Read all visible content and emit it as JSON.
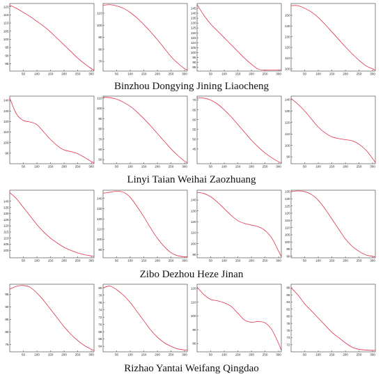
{
  "captions": [
    "Binzhou Dongying Jining Liaocheng",
    "Linyi Taian Weihai Zaozhuang",
    "Zibo Dezhou Heze Jinan",
    "Rizhao Yantai Weifang Qingdao"
  ],
  "line_color": "#e0304a",
  "chart_data": [
    {
      "type": "line",
      "name": "Binzhou",
      "x": [
        0,
        25,
        50,
        75,
        100,
        125,
        150,
        175,
        200,
        225,
        250,
        275,
        300,
        310
      ],
      "y": [
        121,
        119,
        116.5,
        114,
        111,
        108,
        104.5,
        100.5,
        96.5,
        92.5,
        88.5,
        85,
        82,
        81
      ],
      "xticks": [
        50,
        100,
        150,
        200,
        250,
        300
      ],
      "yticks": [
        85,
        90,
        95,
        100,
        105,
        110,
        115,
        120
      ],
      "xlim": [
        0,
        310
      ],
      "ylim": [
        80.5,
        122
      ]
    },
    {
      "type": "line",
      "name": "Dongying",
      "x": [
        0,
        25,
        50,
        75,
        100,
        125,
        150,
        175,
        200,
        225,
        250,
        275,
        300,
        310
      ],
      "y": [
        116.5,
        117,
        116,
        114,
        110.5,
        106,
        100.5,
        94.5,
        88,
        81,
        74,
        68.5,
        64,
        63
      ],
      "xticks": [
        50,
        100,
        150,
        200,
        250,
        300
      ],
      "yticks": [
        70,
        80,
        90,
        100,
        110
      ],
      "xlim": [
        0,
        310
      ],
      "ylim": [
        62,
        118
      ]
    },
    {
      "type": "line",
      "name": "Jining",
      "x": [
        0,
        25,
        50,
        75,
        100,
        125,
        150,
        175,
        200,
        225,
        250,
        275,
        300,
        310
      ],
      "y": [
        149,
        138,
        129,
        122,
        115,
        108,
        101,
        94,
        88,
        83,
        82,
        82,
        82,
        82
      ],
      "xticks": [
        50,
        100,
        150,
        200,
        250,
        300
      ],
      "yticks": [
        85,
        90,
        95,
        100,
        105,
        110,
        115,
        120,
        125,
        130,
        135,
        140,
        145
      ],
      "xlim": [
        0,
        310
      ],
      "ylim": [
        81,
        150
      ]
    },
    {
      "type": "line",
      "name": "Liaocheng",
      "x": [
        0,
        25,
        50,
        75,
        100,
        125,
        150,
        175,
        200,
        225,
        250,
        275,
        300,
        310
      ],
      "y": [
        159,
        159,
        156.5,
        153,
        148,
        141.5,
        134.5,
        127.5,
        120.5,
        114,
        108,
        103,
        100,
        99
      ],
      "xticks": [
        50,
        100,
        150,
        200,
        250,
        300
      ],
      "yticks": [
        100,
        110,
        120,
        130,
        140,
        150
      ],
      "xlim": [
        0,
        310
      ],
      "ylim": [
        98,
        161
      ]
    },
    {
      "type": "line",
      "name": "Linyi",
      "x": [
        0,
        25,
        50,
        75,
        100,
        125,
        150,
        175,
        200,
        225,
        250,
        275,
        300,
        310
      ],
      "y": [
        142,
        127,
        121,
        119.5,
        117,
        110,
        103,
        97,
        93,
        91.5,
        89.5,
        86,
        82,
        81
      ],
      "xticks": [
        50,
        100,
        150,
        200,
        250,
        300
      ],
      "yticks": [
        90,
        100,
        110,
        120,
        130,
        140
      ],
      "xlim": [
        0,
        310
      ],
      "ylim": [
        80,
        144
      ]
    },
    {
      "type": "line",
      "name": "Taian",
      "x": [
        0,
        25,
        50,
        75,
        100,
        125,
        150,
        175,
        200,
        225,
        250,
        275,
        300,
        310
      ],
      "y": [
        111,
        110.5,
        109,
        106,
        102,
        96.5,
        90,
        83,
        75.5,
        68,
        60.5,
        54,
        48.5,
        47
      ],
      "xticks": [
        50,
        100,
        150,
        200,
        250,
        300
      ],
      "yticks": [
        50,
        60,
        70,
        80,
        90,
        100,
        110
      ],
      "xlim": [
        0,
        310
      ],
      "ylim": [
        46,
        112
      ]
    },
    {
      "type": "line",
      "name": "Weihai",
      "x": [
        0,
        25,
        50,
        75,
        100,
        125,
        150,
        175,
        200,
        225,
        250,
        275,
        300,
        310
      ],
      "y": [
        71,
        71,
        70,
        68,
        65,
        61.5,
        57.5,
        53.5,
        49.5,
        46,
        43,
        40.5,
        38.5,
        38
      ],
      "xticks": [
        50,
        100,
        150,
        200,
        250,
        300
      ],
      "yticks": [
        45,
        50,
        55,
        60,
        65,
        70
      ],
      "xlim": [
        0,
        310
      ],
      "ylim": [
        37.5,
        72
      ]
    },
    {
      "type": "line",
      "name": "Zaozhuang",
      "x": [
        0,
        25,
        50,
        75,
        100,
        125,
        150,
        175,
        200,
        225,
        250,
        275,
        300,
        310
      ],
      "y": [
        141,
        136,
        130,
        123,
        116,
        111,
        107.5,
        106,
        105,
        104,
        101,
        96,
        88.5,
        85
      ],
      "xticks": [
        50,
        100,
        150,
        200,
        250,
        300
      ],
      "yticks": [
        90,
        100,
        110,
        120,
        130,
        140
      ],
      "xlim": [
        0,
        310
      ],
      "ylim": [
        84,
        143
      ]
    },
    {
      "type": "line",
      "name": "Zibo",
      "x": [
        0,
        25,
        50,
        75,
        100,
        125,
        150,
        175,
        200,
        225,
        250,
        275,
        300,
        310
      ],
      "y": [
        147,
        142,
        135,
        128,
        121,
        115,
        110,
        106,
        102.5,
        100,
        98,
        96.5,
        95.5,
        95
      ],
      "xticks": [
        50,
        100,
        150,
        200,
        250,
        300
      ],
      "yticks": [
        100,
        105,
        110,
        115,
        120,
        125,
        130,
        135,
        140
      ],
      "xlim": [
        0,
        310
      ],
      "ylim": [
        94,
        149
      ]
    },
    {
      "type": "line",
      "name": "Dezhou",
      "x": [
        0,
        25,
        50,
        75,
        100,
        125,
        150,
        175,
        200,
        225,
        250,
        275,
        300,
        310
      ],
      "y": [
        145,
        146,
        147,
        146,
        141,
        132,
        122,
        111,
        101,
        93,
        87,
        84,
        83,
        83
      ],
      "xticks": [
        50,
        100,
        150,
        200,
        250,
        300
      ],
      "yticks": [
        90,
        100,
        110,
        120,
        130,
        140
      ],
      "xlim": [
        0,
        310
      ],
      "ylim": [
        82,
        148
      ]
    },
    {
      "type": "line",
      "name": "Heze",
      "x": [
        0,
        25,
        50,
        75,
        100,
        125,
        150,
        175,
        200,
        225,
        250,
        275,
        300,
        310
      ],
      "y": [
        147,
        146,
        143,
        138,
        132,
        126,
        121,
        118.5,
        117,
        115.5,
        112,
        105,
        93,
        88
      ],
      "xticks": [
        50,
        100,
        150,
        200,
        250,
        300
      ],
      "yticks": [
        90,
        100,
        110,
        120,
        130,
        140
      ],
      "xlim": [
        0,
        310
      ],
      "ylim": [
        87,
        149
      ]
    },
    {
      "type": "line",
      "name": "Jinan",
      "x": [
        0,
        25,
        50,
        75,
        100,
        125,
        150,
        175,
        200,
        225,
        250,
        275,
        300,
        310
      ],
      "y": [
        135,
        135.5,
        135,
        133,
        129,
        123,
        116,
        109,
        102,
        97,
        93.5,
        91,
        90,
        89.5
      ],
      "xticks": [
        50,
        100,
        150,
        200,
        250,
        300
      ],
      "yticks": [
        90,
        95,
        100,
        105,
        110,
        115,
        120,
        125,
        130,
        135
      ],
      "xlim": [
        0,
        310
      ],
      "ylim": [
        89,
        136
      ]
    },
    {
      "type": "line",
      "name": "Rizhao",
      "x": [
        0,
        25,
        50,
        75,
        100,
        125,
        150,
        175,
        200,
        225,
        250,
        275,
        300,
        310
      ],
      "y": [
        97,
        98.2,
        98.5,
        97.8,
        95.5,
        92.5,
        89,
        85.5,
        82,
        79,
        76.5,
        74.5,
        73,
        72.5
      ],
      "xticks": [
        50,
        100,
        150,
        200,
        250,
        300
      ],
      "yticks": [
        75,
        80,
        85,
        90,
        95
      ],
      "xlim": [
        0,
        310
      ],
      "ylim": [
        72,
        99
      ]
    },
    {
      "type": "line",
      "name": "Yantai",
      "x": [
        0,
        25,
        50,
        75,
        100,
        125,
        150,
        175,
        200,
        225,
        250,
        275,
        300,
        310
      ],
      "y": [
        80,
        80.5,
        79.5,
        78,
        76,
        73.5,
        71,
        68.5,
        66.5,
        65,
        64,
        63.3,
        63,
        63
      ],
      "xticks": [
        50,
        100,
        150,
        200,
        250,
        300
      ],
      "yticks": [
        64,
        66,
        68,
        70,
        72,
        74,
        76,
        78,
        80
      ],
      "xlim": [
        0,
        310
      ],
      "ylim": [
        62.5,
        81
      ]
    },
    {
      "type": "line",
      "name": "Weifang",
      "x": [
        0,
        25,
        50,
        75,
        100,
        125,
        150,
        175,
        200,
        225,
        250,
        275,
        300,
        310
      ],
      "y": [
        121,
        115.5,
        112,
        111,
        109.5,
        107,
        102,
        97,
        95.5,
        96,
        95,
        90,
        80,
        75
      ],
      "xticks": [
        50,
        100,
        150,
        200,
        250,
        300
      ],
      "yticks": [
        80,
        90,
        100,
        110,
        120
      ],
      "xlim": [
        0,
        310
      ],
      "ylim": [
        74,
        123
      ]
    },
    {
      "type": "line",
      "name": "Qingdao",
      "x": [
        0,
        25,
        50,
        75,
        100,
        125,
        150,
        175,
        200,
        225,
        250,
        275,
        300,
        310
      ],
      "y": [
        88,
        86,
        83.5,
        81.5,
        79.5,
        77.5,
        75.5,
        74,
        72.5,
        71.3,
        70.7,
        70.5,
        70.4,
        70.4
      ],
      "xticks": [
        50,
        100,
        150,
        200,
        250,
        300
      ],
      "yticks": [
        72,
        74,
        76,
        78,
        80,
        82,
        84,
        86,
        88
      ],
      "xlim": [
        0,
        310
      ],
      "ylim": [
        70,
        89
      ]
    }
  ]
}
